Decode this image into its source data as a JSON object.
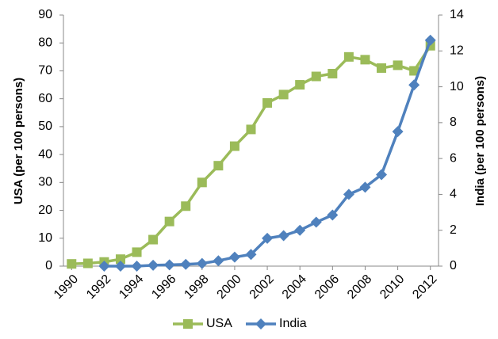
{
  "chart_data": {
    "type": "line",
    "x": [
      1990,
      1991,
      1992,
      1993,
      1994,
      1995,
      1996,
      1997,
      1998,
      1999,
      2000,
      2001,
      2002,
      2003,
      2004,
      2005,
      2006,
      2007,
      2008,
      2009,
      2010,
      2011,
      2012
    ],
    "series": [
      {
        "name": "USA",
        "color": "#9bbb59",
        "marker": "square",
        "values": [
          0.8,
          1.0,
          1.5,
          2.5,
          5,
          9.5,
          16,
          21.5,
          30,
          36,
          43,
          49,
          58.5,
          61.5,
          65,
          68,
          69,
          75,
          74,
          71,
          72,
          70,
          79
        ]
      },
      {
        "name": "India",
        "color": "#4f81bd",
        "marker": "diamond",
        "axis": "y2",
        "values": [
          null,
          null,
          0,
          0,
          0,
          0.05,
          0.07,
          0.1,
          0.15,
          0.3,
          0.5,
          0.65,
          1.55,
          1.7,
          2.0,
          2.45,
          2.85,
          4.0,
          4.4,
          5.1,
          7.5,
          10.1,
          12.6
        ]
      }
    ],
    "xlim": [
      1989.5,
      2012.5
    ],
    "xticks": [
      1990,
      1992,
      1994,
      1996,
      1998,
      2000,
      2002,
      2004,
      2006,
      2008,
      2010,
      2012
    ],
    "ylim": [
      0,
      90
    ],
    "yticks": [
      0,
      10,
      20,
      30,
      40,
      50,
      60,
      70,
      80,
      90
    ],
    "y2lim": [
      0,
      14
    ],
    "y2ticks": [
      0,
      2,
      4,
      6,
      8,
      10,
      12,
      14
    ],
    "ylabel": "USA (per 100 persons)",
    "y2label": "India (per 100 persons)",
    "grid": false,
    "legend": "bottom"
  }
}
